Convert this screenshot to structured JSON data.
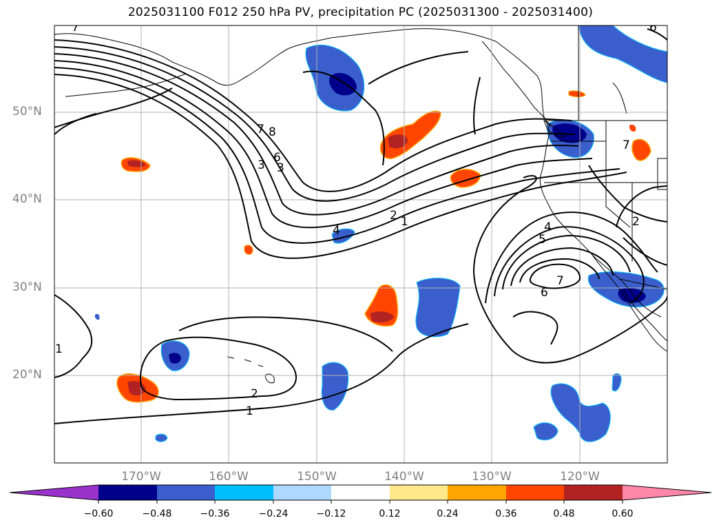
{
  "title": "2025031100 F012 250 hPa PV, precipitation PC (2025031300 - 2025031400)",
  "lat_labels": [
    "50°N",
    "40°N",
    "30°N",
    "20°N"
  ],
  "lon_labels": [
    "170°W",
    "160°W",
    "150°W",
    "140°W",
    "130°W",
    "120°W"
  ],
  "colorbar": {
    "tick_labels": [
      "−0.60",
      "−0.48",
      "−0.36",
      "−0.24",
      "−0.12",
      "0.12",
      "0.24",
      "0.36",
      "0.48",
      "0.60"
    ],
    "colors": [
      "#9933cc",
      "#00008b",
      "#3a5fcd",
      "#00bfff",
      "#add8ff",
      "#ffffff",
      "#ffe88a",
      "#ffa500",
      "#ff4500",
      "#b22222",
      "#ff88aa"
    ]
  },
  "contour_labels": [
    "1",
    "2",
    "3",
    "4",
    "5",
    "6",
    "7",
    "8"
  ]
}
